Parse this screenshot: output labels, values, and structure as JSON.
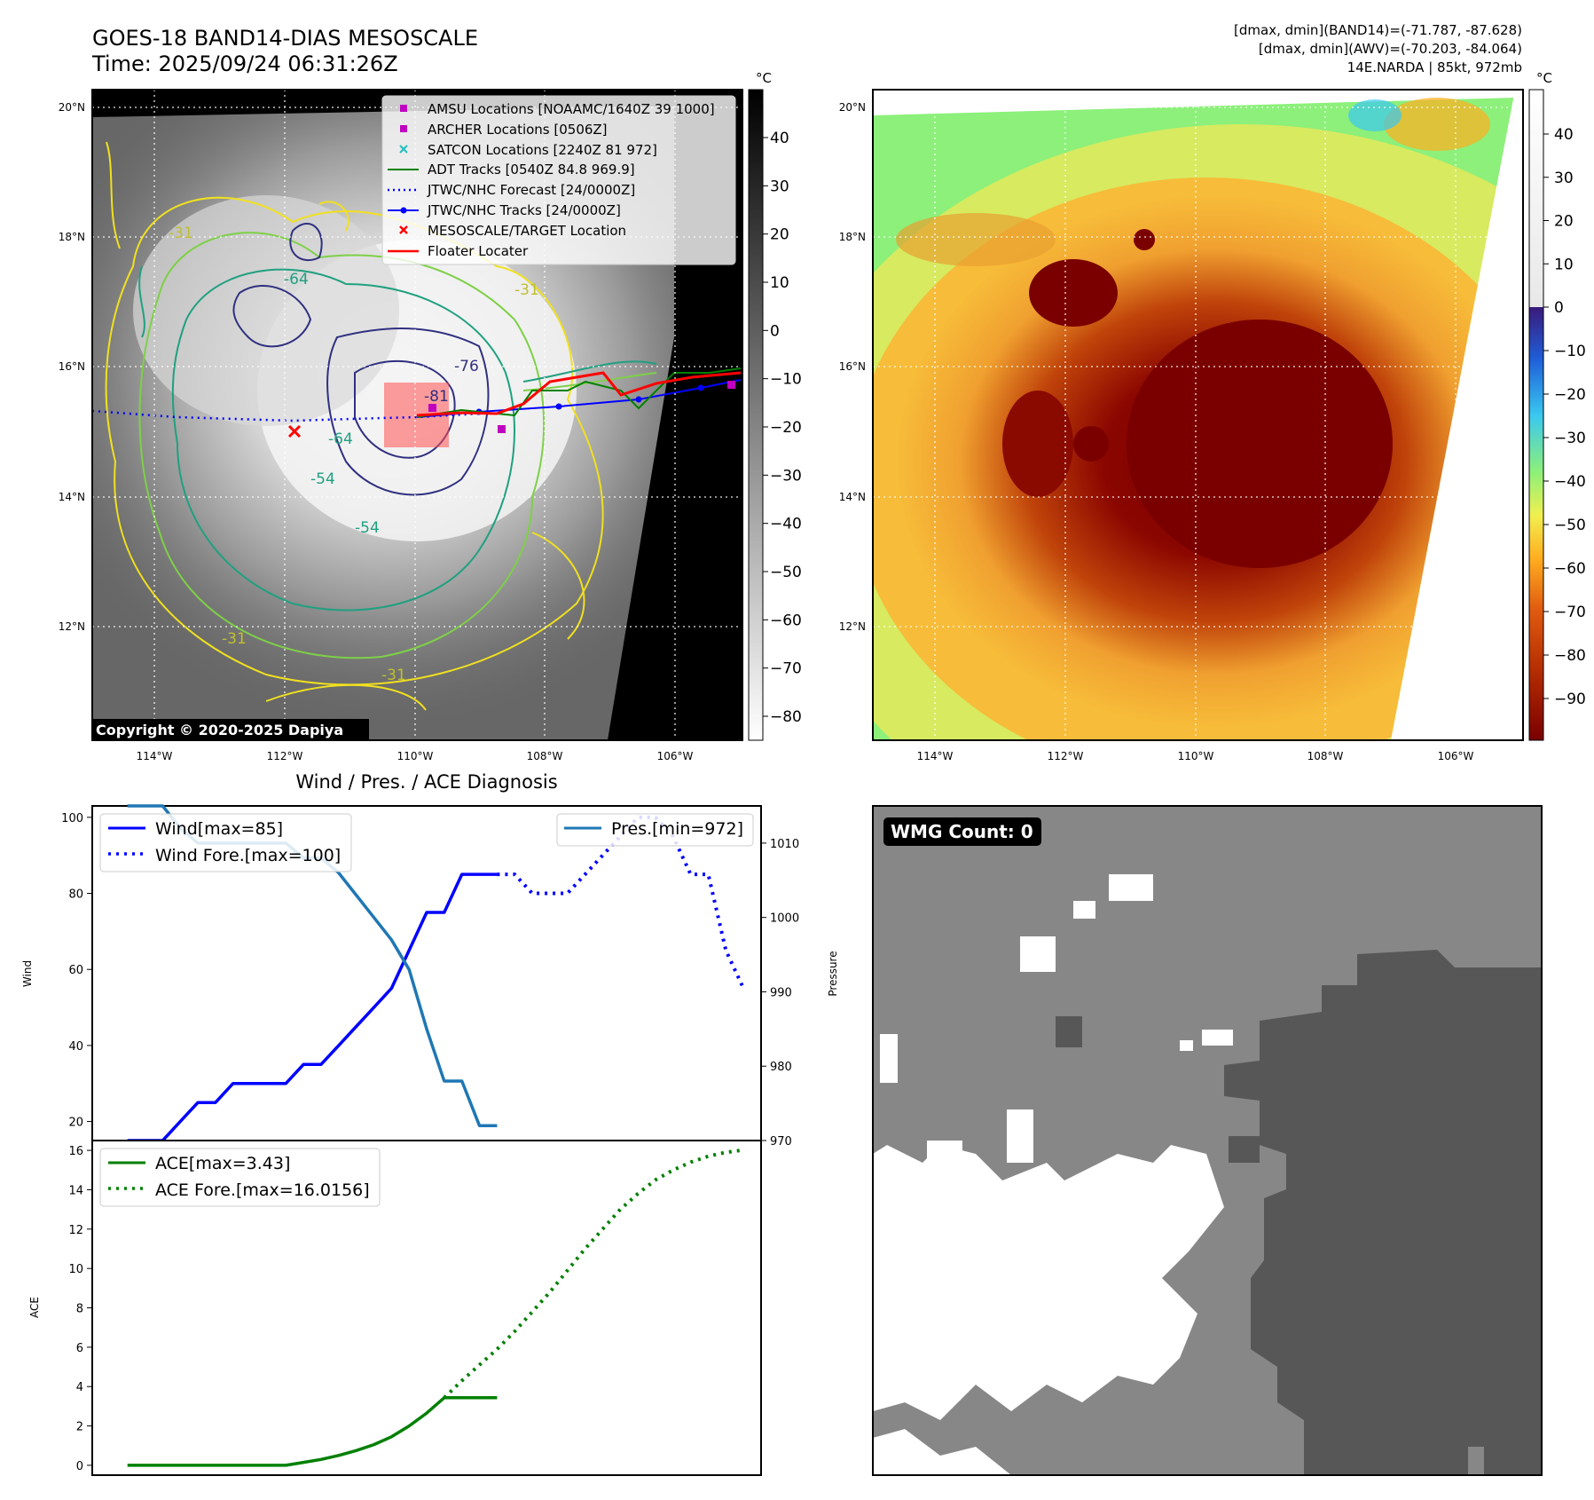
{
  "header": {
    "title_line1": "GOES-18 BAND14-DIAS MESOSCALE",
    "title_line2": "Time: 2025/09/24 06:31:26Z",
    "right_line1": "[dmax, dmin](BAND14)=(-71.787, -87.628)",
    "right_line2": "[dmax, dmin](AWV)=(-70.203, -84.064)",
    "right_line3": "14E.NARDA | 85kt, 972mb"
  },
  "map": {
    "lat_labels": [
      "20°N",
      "18°N",
      "16°N",
      "14°N",
      "12°N"
    ],
    "lon_labels": [
      "114°W",
      "112°W",
      "110°W",
      "108°W",
      "106°W"
    ],
    "copyright": "Copyright © 2020-2025 Dapiya",
    "contour_labels": [
      "-31",
      "-31",
      "-31",
      "-31",
      "-54",
      "-54",
      "-64",
      "-64",
      "-76",
      "-81"
    ]
  },
  "colorbar_left": {
    "unit": "°C",
    "ticks": [
      "40",
      "30",
      "20",
      "10",
      "0",
      "−10",
      "−20",
      "−30",
      "−40",
      "−50",
      "−60",
      "−70",
      "−80"
    ]
  },
  "colorbar_right": {
    "unit": "°C",
    "ticks": [
      "40",
      "30",
      "20",
      "10",
      "0",
      "−10",
      "−20",
      "−30",
      "−40",
      "−50",
      "−60",
      "−70",
      "−80",
      "−90"
    ],
    "colors": [
      "#ffffff",
      "#3a1a7a",
      "#1f5ed8",
      "#3ac8f0",
      "#8cf07a",
      "#f0f050",
      "#ffae20",
      "#e05a10",
      "#b02a00",
      "#7a0000"
    ]
  },
  "legend_map": {
    "items": [
      {
        "label": "AMSU Locations [NOAAMC/1640Z 39 1000]",
        "color": "#c000c0",
        "marker": "square"
      },
      {
        "label": "ARCHER Locations [0506Z]",
        "color": "#c000c0",
        "marker": "square"
      },
      {
        "label": "SATCON Locations [2240Z 81 972]",
        "color": "#20c0c0",
        "marker": "x"
      },
      {
        "label": "ADT Tracks [0540Z 84.8 969.9]",
        "color": "#008000",
        "marker": "line"
      },
      {
        "label": "JTWC/NHC Forecast [24/0000Z]",
        "color": "#0000ff",
        "marker": "dotted"
      },
      {
        "label": "JTWC/NHC Tracks [24/0000Z]",
        "color": "#0000ff",
        "marker": "line-dot"
      },
      {
        "label": "MESOSCALE/TARGET Location",
        "color": "#ff0000",
        "marker": "x"
      },
      {
        "label": "Floater Locater",
        "color": "#ff0000",
        "marker": "line"
      }
    ]
  },
  "diag": {
    "title": "Wind / Pres. / ACE Diagnosis",
    "wind_ylabel": "Wind",
    "pres_ylabel": "Pressure",
    "ace_ylabel": "ACE",
    "wind_legend": [
      "Wind[max=85]",
      "Wind Fore.[max=100]"
    ],
    "pres_legend": "Pres.[min=972]",
    "ace_legend": [
      "ACE[max=3.43]",
      "ACE Fore.[max=16.0156]"
    ],
    "wmg_label": "WMG Count: 0"
  },
  "chart_data": [
    {
      "type": "line",
      "title": "Wind / Pres. / ACE Diagnosis",
      "ylabel": "Wind",
      "ylim": [
        15,
        103
      ],
      "y_ticks": [
        20,
        40,
        60,
        80,
        100
      ],
      "series": [
        {
          "name": "Wind[max=85]",
          "color": "#0000ff",
          "style": "solid",
          "x": [
            0,
            1,
            2,
            3,
            4,
            5,
            6,
            7,
            8,
            9,
            10,
            11,
            12,
            13,
            14,
            15,
            16,
            17,
            18,
            19,
            20,
            21
          ],
          "values": [
            15,
            15,
            15,
            20,
            25,
            25,
            30,
            30,
            30,
            30,
            35,
            35,
            40,
            45,
            50,
            55,
            65,
            75,
            75,
            85,
            85,
            85
          ]
        },
        {
          "name": "Wind Fore.[max=100]",
          "color": "#0000ff",
          "style": "dotted",
          "x": [
            21,
            22,
            23,
            24,
            25,
            26,
            27,
            28,
            29,
            30,
            31,
            32,
            33,
            34,
            35
          ],
          "values": [
            85,
            85,
            80,
            80,
            80,
            85,
            90,
            95,
            100,
            100,
            95,
            85,
            85,
            65,
            55
          ]
        }
      ]
    },
    {
      "type": "line",
      "ylabel": "Pressure",
      "ylim": [
        970,
        1015
      ],
      "y_ticks": [
        970,
        980,
        990,
        1000,
        1010
      ],
      "series": [
        {
          "name": "Pres.[min=972]",
          "color": "#1f77b4",
          "style": "solid",
          "x": [
            0,
            1,
            2,
            3,
            4,
            5,
            6,
            7,
            8,
            9,
            10,
            11,
            12,
            13,
            14,
            15,
            16,
            17,
            18,
            19,
            20,
            21
          ],
          "values": [
            1015,
            1015,
            1015,
            1012,
            1010,
            1010,
            1010,
            1010,
            1010,
            1010,
            1008,
            1008,
            1006,
            1003,
            1000,
            997,
            993,
            985,
            978,
            978,
            972,
            972
          ]
        }
      ]
    },
    {
      "type": "line",
      "ylabel": "ACE",
      "ylim": [
        -0.5,
        16.5
      ],
      "y_ticks": [
        0,
        2,
        4,
        6,
        8,
        10,
        12,
        14,
        16
      ],
      "series": [
        {
          "name": "ACE[max=3.43]",
          "color": "#008000",
          "style": "solid",
          "x": [
            0,
            1,
            2,
            3,
            4,
            5,
            6,
            7,
            8,
            9,
            10,
            11,
            12,
            13,
            14,
            15,
            16,
            17,
            18,
            19,
            20,
            21
          ],
          "values": [
            0,
            0,
            0,
            0,
            0,
            0,
            0,
            0,
            0,
            0,
            0.15,
            0.3,
            0.5,
            0.75,
            1.05,
            1.45,
            2.0,
            2.65,
            3.43,
            3.43,
            3.43,
            3.43
          ]
        },
        {
          "name": "ACE Fore.[max=16.0156]",
          "color": "#008000",
          "style": "dotted",
          "x": [
            18,
            19,
            20,
            21,
            22,
            23,
            24,
            25,
            26,
            27,
            28,
            29,
            30,
            31,
            32,
            33,
            34,
            35
          ],
          "values": [
            3.43,
            4.3,
            5.1,
            5.9,
            6.8,
            7.8,
            8.8,
            9.9,
            11.0,
            12.0,
            13.0,
            13.8,
            14.5,
            15.0,
            15.4,
            15.7,
            15.9,
            16.0156
          ]
        }
      ]
    }
  ]
}
